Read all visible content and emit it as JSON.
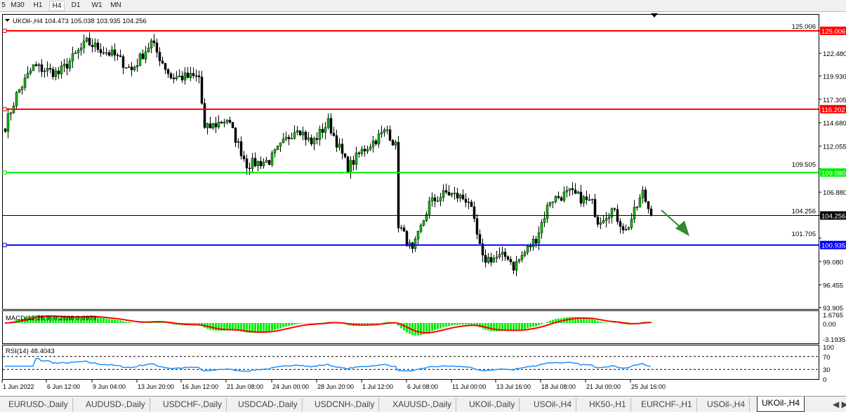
{
  "timeframes": [
    "5",
    "M30",
    "H1",
    "H4",
    "D1",
    "W1",
    "MN"
  ],
  "active_timeframe": "H4",
  "chart_header": {
    "symbol": "UKOil-,H4",
    "ohlc": "104.473 105.038 103.935 104.256"
  },
  "price_axis": [
    "125.006",
    "122.480",
    "119.930",
    "117.305",
    "114.680",
    "112.055",
    "109.505",
    "106.880",
    "104.256",
    "101.705",
    "99.080",
    "96.455",
    "93.905"
  ],
  "levels": [
    {
      "price": "125.006",
      "value": 125.006,
      "color": "#ff0000"
    },
    {
      "price": "116.202",
      "value": 116.202,
      "color": "#ff0000"
    },
    {
      "price": "109.080",
      "value": 109.08,
      "color": "#00ee00"
    },
    {
      "price": "100.935",
      "value": 100.935,
      "color": "#0000ff"
    }
  ],
  "current_price": {
    "label": "104.256",
    "value": 104.256
  },
  "price_range": [
    93.905,
    125.006
  ],
  "close_anchors": [
    [
      0,
      114.3
    ],
    [
      4,
      117.8
    ],
    [
      10,
      121
    ],
    [
      19,
      120.2
    ],
    [
      29,
      123.7
    ],
    [
      39,
      122.2
    ],
    [
      45,
      120.6
    ],
    [
      52,
      123.7
    ],
    [
      59,
      119.8
    ],
    [
      69,
      119.8
    ],
    [
      71,
      113.9
    ],
    [
      79,
      115.1
    ],
    [
      86,
      110
    ],
    [
      94,
      110.4
    ],
    [
      104,
      114.3
    ],
    [
      109,
      112.3
    ],
    [
      115,
      114.7
    ],
    [
      122,
      109.6
    ],
    [
      127,
      111.5
    ],
    [
      136,
      113.9
    ],
    [
      139,
      112
    ],
    [
      140,
      103.3
    ],
    [
      145,
      100.1
    ],
    [
      151,
      105.6
    ],
    [
      157,
      106.8
    ],
    [
      165,
      106
    ],
    [
      170,
      99.3
    ],
    [
      179,
      99.7
    ],
    [
      181,
      98.5
    ],
    [
      189,
      101.7
    ],
    [
      194,
      106
    ],
    [
      201,
      106.8
    ],
    [
      209,
      105.6
    ],
    [
      211,
      103.7
    ],
    [
      216,
      104.9
    ],
    [
      221,
      102.5
    ],
    [
      225,
      105.3
    ],
    [
      227,
      106.8
    ],
    [
      230,
      104.256
    ]
  ],
  "macd": {
    "label": "MACD(12,26,9) 0.2698 0.0979",
    "axis": [
      "1.6765",
      "0.00",
      "-3.1935"
    ]
  },
  "rsi": {
    "label": "RSI(14) 48.4043",
    "axis": [
      "100",
      "70",
      "30",
      "0"
    ]
  },
  "time_axis": [
    "1 Jun 2022",
    "6 Jun 12:00",
    "9 Jun 04:00",
    "13 Jun 20:00",
    "16 Jun 12:00",
    "21 Jun 08:00",
    "24 Jun 00:00",
    "28 Jun 20:00",
    "1 Jul 12:00",
    "6 Jul 08:00",
    "11 Jul 00:00",
    "13 Jul 16:00",
    "18 Jul 08:00",
    "21 Jul 00:00",
    "25 Jul 16:00"
  ],
  "tabs": [
    "EURUSD-,Daily",
    "AUDUSD-,Daily",
    "USDCHF-,Daily",
    "USDCAD-,Daily",
    "USDCNH-,Daily",
    "XAUUSD-,Daily",
    "UKOil-,Daily",
    "USOil-,H4",
    "HK50-,H1",
    "EURCHF-,H1",
    "USOil-,H4",
    "UKOil-,H4"
  ],
  "active_tab": "UKOil-,H4",
  "colors": {
    "bull": "#00c000",
    "bear": "#00c000",
    "macd_hist": "#00ee00",
    "signal": "#ff0000",
    "rsi": "#1e90ff",
    "arrow": "#2e8b2e"
  }
}
